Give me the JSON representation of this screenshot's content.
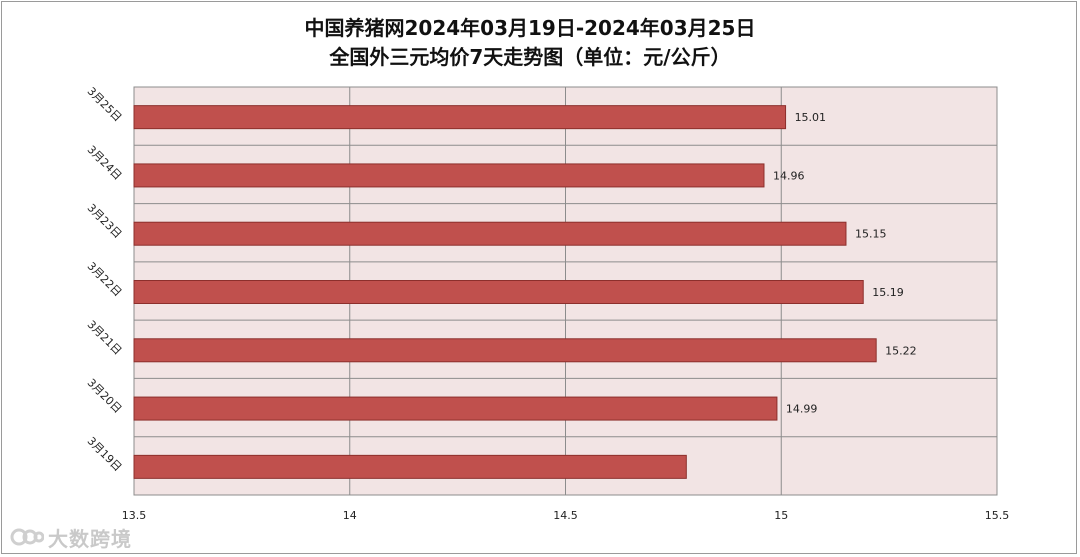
{
  "chart_data": {
    "type": "bar",
    "orientation": "horizontal",
    "title_lines": [
      "中国养猪网2024年03月19日-2024年03月25日",
      "全国外三元均价7天走势图（单位：元/公斤）"
    ],
    "categories": [
      "3月25日",
      "3月24日",
      "3月23日",
      "3月22日",
      "3月21日",
      "3月20日",
      "3月19日"
    ],
    "values": [
      15.01,
      14.96,
      15.15,
      15.19,
      15.22,
      14.99,
      14.78
    ],
    "data_labels": [
      "15.01",
      "14.96",
      "15.15",
      "15.19",
      "15.22",
      "14.99",
      ""
    ],
    "xlim": [
      13.5,
      15.5
    ],
    "x_ticks": [
      13.5,
      14,
      14.5,
      15,
      15.5
    ],
    "x_tick_labels": [
      "13.5",
      "14",
      "14.5",
      "15",
      "15.5"
    ],
    "xlabel": "",
    "ylabel": "",
    "grid": true,
    "legend": "none",
    "colors": {
      "bar_fill": "#c0504d",
      "bar_stroke": "#8c2f2c",
      "plot_background": "#f2e4e4",
      "grid": "#8c8c8c"
    }
  },
  "watermark": {
    "text": "大数跨境"
  }
}
